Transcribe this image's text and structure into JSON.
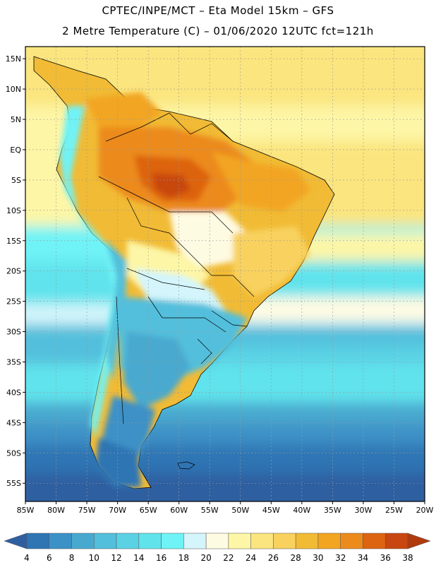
{
  "title": {
    "line1": "CPTEC/INPE/MCT –  Eta Model 15km – GFS",
    "line2": "2 Metre Temperature (C) – 01/06/2020 12UTC fct=121h"
  },
  "map": {
    "lon_range": [
      -85,
      -20
    ],
    "lat_range": [
      -58,
      17
    ],
    "lat_ticks": [
      {
        "value": 15,
        "label": "15N"
      },
      {
        "value": 10,
        "label": "10N"
      },
      {
        "value": 5,
        "label": "5N"
      },
      {
        "value": 0,
        "label": "EQ"
      },
      {
        "value": -5,
        "label": "5S"
      },
      {
        "value": -10,
        "label": "10S"
      },
      {
        "value": -15,
        "label": "15S"
      },
      {
        "value": -20,
        "label": "20S"
      },
      {
        "value": -25,
        "label": "25S"
      },
      {
        "value": -30,
        "label": "30S"
      },
      {
        "value": -35,
        "label": "35S"
      },
      {
        "value": -40,
        "label": "40S"
      },
      {
        "value": -45,
        "label": "45S"
      },
      {
        "value": -50,
        "label": "50S"
      },
      {
        "value": -55,
        "label": "55S"
      }
    ],
    "lon_ticks": [
      {
        "value": -85,
        "label": "85W"
      },
      {
        "value": -80,
        "label": "80W"
      },
      {
        "value": -75,
        "label": "75W"
      },
      {
        "value": -70,
        "label": "70W"
      },
      {
        "value": -65,
        "label": "65W"
      },
      {
        "value": -60,
        "label": "60W"
      },
      {
        "value": -55,
        "label": "55W"
      },
      {
        "value": -50,
        "label": "50W"
      },
      {
        "value": -45,
        "label": "45W"
      },
      {
        "value": -40,
        "label": "40W"
      },
      {
        "value": -35,
        "label": "35W"
      },
      {
        "value": -30,
        "label": "30W"
      },
      {
        "value": -25,
        "label": "25W"
      },
      {
        "value": -20,
        "label": "20W"
      }
    ]
  },
  "colorbar": {
    "unit": "C",
    "levels": [
      4,
      6,
      8,
      10,
      12,
      14,
      16,
      18,
      20,
      22,
      24,
      26,
      28,
      30,
      32,
      34,
      36,
      38
    ],
    "colors": [
      "#2f5fa0",
      "#2f75b4",
      "#3c91c6",
      "#48a9cf",
      "#52bfdc",
      "#5ad2e4",
      "#61e3ec",
      "#6ff3f6",
      "#d3f5fb",
      "#fefbe3",
      "#fdf6a6",
      "#fbe57e",
      "#f8d15e",
      "#f1bb35",
      "#f2a520",
      "#ec8a1c",
      "#dd6411",
      "#c84710",
      "#b03a0c"
    ]
  }
}
